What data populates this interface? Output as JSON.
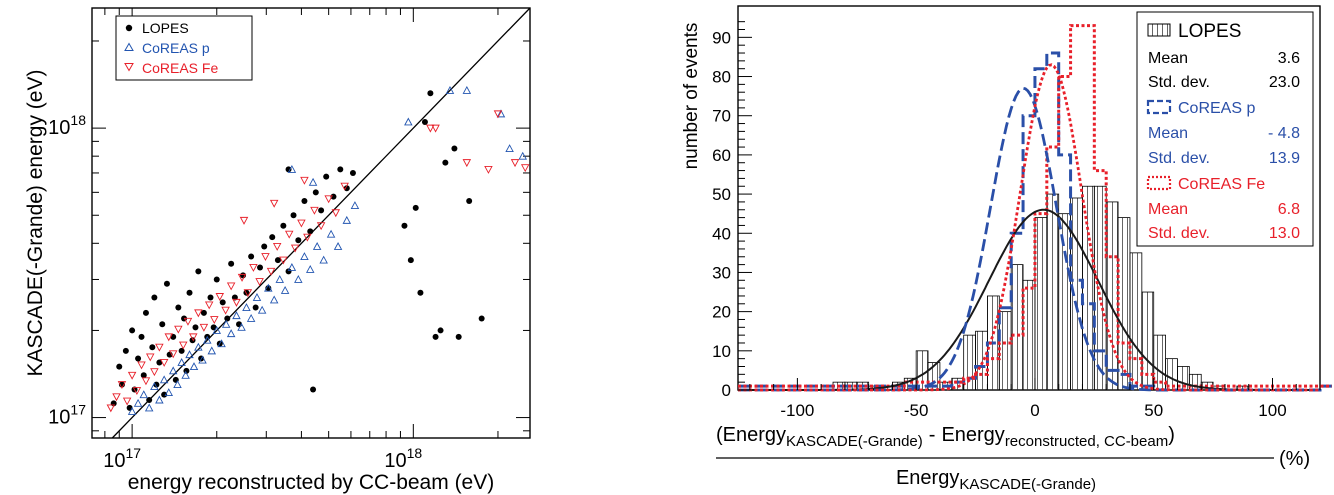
{
  "chart_data": [
    {
      "type": "scatter",
      "xlabel": "energy reconstructed by CC-beam (eV)",
      "ylabel": "KASCADE(-Grande) energy (eV)",
      "x_scale": "log",
      "y_scale": "log",
      "xlim": [
        7.2e+16,
        2.6e+18
      ],
      "ylim": [
        8.5e+16,
        2.6e+18
      ],
      "x_ticks": [
        {
          "value": 1e+17,
          "base": "10",
          "exp": "17"
        },
        {
          "value": 1e+18,
          "base": "10",
          "exp": "18"
        }
      ],
      "y_ticks": [
        {
          "value": 1e+17,
          "base": "10",
          "exp": "17"
        },
        {
          "value": 1e+18,
          "base": "10",
          "exp": "18"
        }
      ],
      "legend_position": "top-left",
      "reference_line": "y = x",
      "series": [
        {
          "name": "LOPES",
          "marker": "filled-circle",
          "color": "#000000",
          "points": [
            [
              8.6e+16,
              1.12e+17
            ],
            [
              9e+16,
              1.5e+17
            ],
            [
              9.2e+16,
              1.3e+17
            ],
            [
              9.5e+16,
              1.7e+17
            ],
            [
              9.8e+16,
              1.08e+17
            ],
            [
              1e+17,
              2e+17
            ],
            [
              1.02e+17,
              1.25e+17
            ],
            [
              1.05e+17,
              1.6e+17
            ],
            [
              1.08e+17,
              1.9e+17
            ],
            [
              1.1e+17,
              1.4e+17
            ],
            [
              1.12e+17,
              2.3e+17
            ],
            [
              1.15e+17,
              1.15e+17
            ],
            [
              1.18e+17,
              1.75e+17
            ],
            [
              1.2e+17,
              2.6e+17
            ],
            [
              1.22e+17,
              1.3e+17
            ],
            [
              1.25e+17,
              1.55e+17
            ],
            [
              1.28e+17,
              2.1e+17
            ],
            [
              1.3e+17,
              1.2e+17
            ],
            [
              1.33e+17,
              2.9e+17
            ],
            [
              1.36e+17,
              1.65e+17
            ],
            [
              1.4e+17,
              1.9e+17
            ],
            [
              1.43e+17,
              1.35e+17
            ],
            [
              1.46e+17,
              2.4e+17
            ],
            [
              1.5e+17,
              1.7e+17
            ],
            [
              1.53e+17,
              2.2e+17
            ],
            [
              1.56e+17,
              1.45e+17
            ],
            [
              1.6e+17,
              2.7e+17
            ],
            [
              1.64e+17,
              1.85e+17
            ],
            [
              1.68e+17,
              2.05e+17
            ],
            [
              1.72e+17,
              3.2e+17
            ],
            [
              1.76e+17,
              1.6e+17
            ],
            [
              1.8e+17,
              2.3e+17
            ],
            [
              1.85e+17,
              1.9e+17
            ],
            [
              1.9e+17,
              2.6e+17
            ],
            [
              1.95e+17,
              2.05e+17
            ],
            [
              2e+17,
              3e+17
            ],
            [
              2.05e+17,
              1.8e+17
            ],
            [
              2.1e+17,
              2.5e+17
            ],
            [
              2.18e+17,
              2.2e+17
            ],
            [
              2.25e+17,
              3.4e+17
            ],
            [
              2.32e+17,
              2.6e+17
            ],
            [
              2.4e+17,
              2.1e+17
            ],
            [
              2.48e+17,
              3.1e+17
            ],
            [
              2.55e+17,
              2.7e+17
            ],
            [
              2.65e+17,
              3.6e+17
            ],
            [
              2.75e+17,
              2.4e+17
            ],
            [
              2.85e+17,
              3.3e+17
            ],
            [
              2.95e+17,
              3.9e+17
            ],
            [
              3.05e+17,
              2.8e+17
            ],
            [
              3.15e+17,
              4.2e+17
            ],
            [
              3.3e+17,
              3.5e+17
            ],
            [
              3.45e+17,
              4.6e+17
            ],
            [
              3.6e+17,
              3.2e+17
            ],
            [
              3.75e+17,
              5e+17
            ],
            [
              3.9e+17,
              4.1e+17
            ],
            [
              4.1e+17,
              5.6e+17
            ],
            [
              4.3e+17,
              4.4e+17
            ],
            [
              4.5e+17,
              6e+17
            ],
            [
              4.7e+17,
              5.2e+17
            ],
            [
              4.9e+17,
              6.8e+17
            ],
            [
              5.2e+17,
              5.8e+17
            ],
            [
              5.5e+17,
              7.2e+17
            ],
            [
              5.8e+17,
              6.2e+17
            ],
            [
              6.1e+17,
              7e+17
            ],
            [
              3.6e+17,
              7.2e+17
            ],
            [
              4.4e+17,
              1.25e+17
            ],
            [
              9.3e+17,
              4.6e+17
            ],
            [
              9.8e+17,
              3.5e+17
            ],
            [
              1.02e+18,
              5.3e+17
            ],
            [
              1.06e+18,
              2.7e+17
            ],
            [
              1.1e+18,
              1.05e+18
            ],
            [
              1.15e+18,
              1.32e+18
            ],
            [
              1.2e+18,
              1.9e+17
            ],
            [
              1.25e+18,
              2e+17
            ],
            [
              1.3e+18,
              7.6e+17
            ],
            [
              1.45e+18,
              1.9e+17
            ],
            [
              1.58e+18,
              5.6e+17
            ],
            [
              1.75e+18,
              2.2e+17
            ],
            [
              1.4e+18,
              8.5e+17
            ]
          ]
        },
        {
          "name": "CoREAS p",
          "marker": "open-triangle-up",
          "color": "#2255b0",
          "points": [
            [
              1e+17,
              1.05e+17
            ],
            [
              1.05e+17,
              1.12e+17
            ],
            [
              1.1e+17,
              1.2e+17
            ],
            [
              1.15e+17,
              1.08e+17
            ],
            [
              1.2e+17,
              1.28e+17
            ],
            [
              1.25e+17,
              1.15e+17
            ],
            [
              1.3e+17,
              1.35e+17
            ],
            [
              1.35e+17,
              1.22e+17
            ],
            [
              1.4e+17,
              1.45e+17
            ],
            [
              1.45e+17,
              1.3e+17
            ],
            [
              1.5e+17,
              1.55e+17
            ],
            [
              1.55e+17,
              1.4e+17
            ],
            [
              1.6e+17,
              1.65e+17
            ],
            [
              1.66e+17,
              1.5e+17
            ],
            [
              1.72e+17,
              1.75e+17
            ],
            [
              1.78e+17,
              1.58e+17
            ],
            [
              1.85e+17,
              1.85e+17
            ],
            [
              1.92e+17,
              1.7e+17
            ],
            [
              2e+17,
              2e+17
            ],
            [
              2.08e+17,
              1.8e+17
            ],
            [
              2.16e+17,
              2.1e+17
            ],
            [
              2.25e+17,
              1.95e+17
            ],
            [
              2.35e+17,
              2.25e+17
            ],
            [
              2.45e+17,
              2.05e+17
            ],
            [
              2.55e+17,
              2.4e+17
            ],
            [
              2.65e+17,
              2.2e+17
            ],
            [
              2.78e+17,
              2.6e+17
            ],
            [
              2.9e+17,
              2.35e+17
            ],
            [
              3.05e+17,
              2.8e+17
            ],
            [
              3.2e+17,
              2.55e+17
            ],
            [
              3.35e+17,
              3e+17
            ],
            [
              3.5e+17,
              2.75e+17
            ],
            [
              3.7e+17,
              3.3e+17
            ],
            [
              3.9e+17,
              3e+17
            ],
            [
              4.1e+17,
              3.6e+17
            ],
            [
              4.3e+17,
              3.25e+17
            ],
            [
              4.55e+17,
              3.9e+17
            ],
            [
              4.8e+17,
              3.5e+17
            ],
            [
              5.1e+17,
              4.3e+17
            ],
            [
              5.4e+17,
              3.9e+17
            ],
            [
              5.8e+17,
              4.8e+17
            ],
            [
              6.2e+17,
              5.4e+17
            ],
            [
              3.7e+17,
              7.2e+17
            ],
            [
              4.4e+17,
              6.5e+17
            ],
            [
              9.6e+17,
              1.05e+18
            ],
            [
              1.35e+18,
              1.35e+18
            ],
            [
              1.55e+18,
              1.35e+18
            ],
            [
              2.05e+18,
              1.12e+18
            ],
            [
              2.2e+18,
              8.5e+17
            ],
            [
              2.45e+18,
              8e+17
            ]
          ]
        },
        {
          "name": "CoREAS Fe",
          "marker": "open-triangle-down",
          "color": "#e8202a",
          "points": [
            [
              8.4e+16,
              1.08e+17
            ],
            [
              8.8e+16,
              1.18e+17
            ],
            [
              9.2e+16,
              1.3e+17
            ],
            [
              9.6e+16,
              1.14e+17
            ],
            [
              1e+17,
              1.4e+17
            ],
            [
              1.04e+17,
              1.24e+17
            ],
            [
              1.08e+17,
              1.52e+17
            ],
            [
              1.12e+17,
              1.34e+17
            ],
            [
              1.16e+17,
              1.62e+17
            ],
            [
              1.2e+17,
              1.44e+17
            ],
            [
              1.25e+17,
              1.75e+17
            ],
            [
              1.3e+17,
              1.55e+17
            ],
            [
              1.35e+17,
              1.9e+17
            ],
            [
              1.4e+17,
              1.66e+17
            ],
            [
              1.46e+17,
              2.02e+17
            ],
            [
              1.52e+17,
              1.78e+17
            ],
            [
              1.58e+17,
              2.15e+17
            ],
            [
              1.65e+17,
              1.9e+17
            ],
            [
              1.72e+17,
              2.3e+17
            ],
            [
              1.8e+17,
              2.05e+17
            ],
            [
              1.88e+17,
              2.45e+17
            ],
            [
              1.96e+17,
              2.18e+17
            ],
            [
              2.05e+17,
              2.62e+17
            ],
            [
              2.15e+17,
              2.35e+17
            ],
            [
              2.25e+17,
              2.85e+17
            ],
            [
              2.35e+17,
              2.5e+17
            ],
            [
              2.46e+17,
              3.05e+17
            ],
            [
              2.58e+17,
              2.7e+17
            ],
            [
              2.7e+17,
              3.3e+17
            ],
            [
              2.84e+17,
              2.95e+17
            ],
            [
              2.98e+17,
              3.6e+17
            ],
            [
              3.12e+17,
              3.2e+17
            ],
            [
              3.28e+17,
              3.9e+17
            ],
            [
              3.45e+17,
              3.5e+17
            ],
            [
              3.62e+17,
              4.3e+17
            ],
            [
              3.8e+17,
              3.85e+17
            ],
            [
              4e+17,
              4.7e+17
            ],
            [
              4.2e+17,
              4.2e+17
            ],
            [
              4.45e+17,
              5.2e+17
            ],
            [
              4.7e+17,
              4.6e+17
            ],
            [
              5e+17,
              5.7e+17
            ],
            [
              5.3e+17,
              5.1e+17
            ],
            [
              5.7e+17,
              6.3e+17
            ],
            [
              2.5e+17,
              4.8e+17
            ],
            [
              3.2e+17,
              5.5e+17
            ],
            [
              4.1e+17,
              6.6e+17
            ],
            [
              1.15e+18,
              1e+18
            ],
            [
              1.2e+18,
              1e+18
            ],
            [
              1.55e+18,
              7.6e+17
            ],
            [
              1.85e+18,
              7.2e+17
            ],
            [
              2e+18,
              1.12e+18
            ],
            [
              2.3e+18,
              7.6e+17
            ],
            [
              2.5e+18,
              7.3e+17
            ]
          ]
        }
      ]
    },
    {
      "type": "histogram",
      "xlabel_formula": {
        "numerator_left": "Energy",
        "numerator_left_sub": "KASCADE(-Grande)",
        "minus": "-",
        "numerator_right": "Energy",
        "numerator_right_sub": "reconstructed, CC-beam",
        "denominator": "Energy",
        "denominator_sub": "KASCADE(-Grande)",
        "unit": "(%)"
      },
      "ylabel": "number of events",
      "xlim": [
        -125,
        120
      ],
      "ylim": [
        0,
        98
      ],
      "x_ticks": [
        -100,
        -50,
        0,
        50,
        100
      ],
      "y_ticks": [
        0,
        10,
        20,
        30,
        40,
        50,
        60,
        70,
        80,
        90
      ],
      "legend_position": "top-right",
      "series": [
        {
          "name": "LOPES",
          "style": "hatched-histogram",
          "color": "#000000",
          "bin_width": 5,
          "bin_edges_start": -125,
          "counts": [
            0,
            0,
            0,
            0,
            0,
            0,
            0,
            0,
            2,
            2,
            2,
            1,
            1,
            2,
            3,
            10,
            7,
            2,
            3,
            14,
            15,
            24,
            20,
            32,
            28,
            44,
            50,
            45,
            49,
            52,
            52,
            48,
            44,
            35,
            25,
            14,
            8,
            6,
            4,
            2,
            1,
            0,
            1,
            0,
            0,
            0,
            0,
            0,
            0,
            0
          ]
        },
        {
          "name": "CoREAS p",
          "style": "dashed-histogram",
          "color": "#2a4fa8",
          "bin_width": 5,
          "bin_edges_start": -125,
          "counts": [
            1,
            1,
            1,
            1,
            1,
            1,
            1,
            1,
            1,
            1,
            1,
            1,
            1,
            1,
            1,
            1,
            1,
            1,
            2,
            3,
            6,
            12,
            21,
            40,
            70,
            82,
            86,
            60,
            28,
            22,
            10,
            5,
            4,
            1,
            1,
            0,
            0,
            0,
            0,
            0,
            0,
            0,
            0,
            0,
            0,
            0,
            0,
            0,
            0,
            1
          ]
        },
        {
          "name": "CoREAS Fe",
          "style": "dotted-histogram",
          "color": "#e8202a",
          "bin_width": 5,
          "bin_edges_start": -125,
          "counts": [
            1,
            1,
            1,
            1,
            1,
            1,
            1,
            1,
            1,
            1,
            1,
            1,
            1,
            1,
            2,
            2,
            2,
            2,
            2,
            3,
            4,
            8,
            12,
            14,
            26,
            45,
            62,
            80,
            93,
            93,
            56,
            34,
            12,
            8,
            4,
            2,
            1,
            1,
            1,
            1,
            1,
            1,
            1,
            1,
            1,
            1,
            1,
            1,
            1,
            1
          ]
        }
      ],
      "fits": [
        {
          "series": "LOPES",
          "type": "gaussian",
          "color": "#1a1a1a",
          "style": "solid",
          "mean": 3.6,
          "sigma": 23.0,
          "amplitude": 46
        },
        {
          "series": "CoREAS p",
          "type": "gaussian",
          "color": "#2a4fa8",
          "style": "dashed",
          "mean": -4.8,
          "sigma": 13.9,
          "amplitude": 77
        },
        {
          "series": "CoREAS Fe",
          "type": "gaussian",
          "color": "#e8202a",
          "style": "dotted",
          "mean": 6.8,
          "sigma": 13.0,
          "amplitude": 83
        }
      ],
      "stats": [
        {
          "series": "LOPES",
          "color": "#000000",
          "mean_label": "Mean",
          "mean_value": "3.6",
          "std_label": "Std. dev.",
          "std_value": "23.0"
        },
        {
          "series": "CoREAS p",
          "color": "#2a4fa8",
          "mean_label": "Mean",
          "mean_value": "- 4.8",
          "std_label": "Std. dev.",
          "std_value": "13.9"
        },
        {
          "series": "CoREAS Fe",
          "color": "#e8202a",
          "mean_label": "Mean",
          "mean_value": "6.8",
          "std_label": "Std. dev.",
          "std_value": "13.0"
        }
      ]
    }
  ]
}
